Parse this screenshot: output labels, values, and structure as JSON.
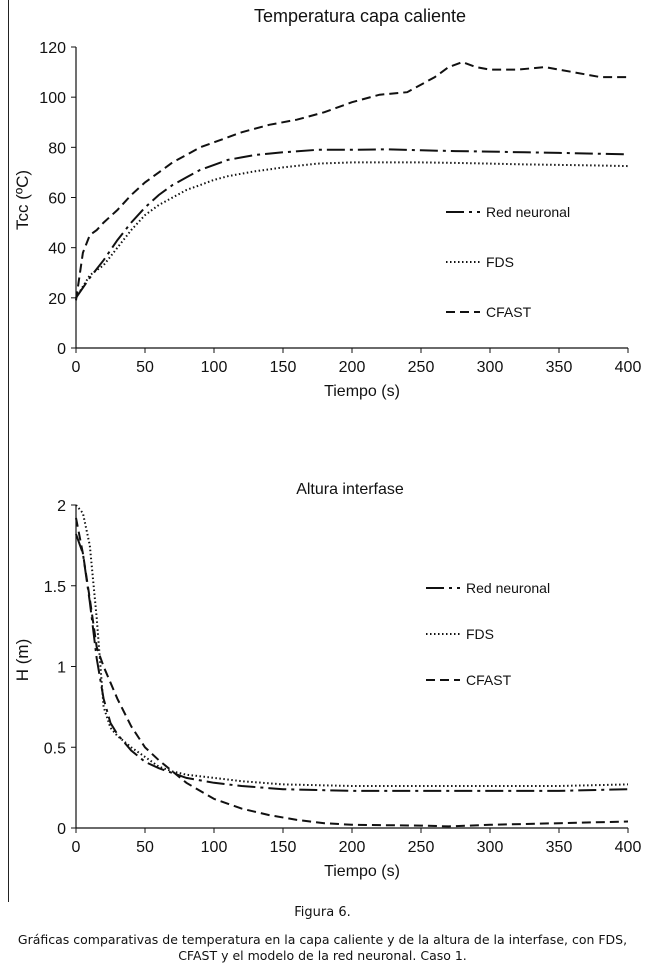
{
  "figure": {
    "label": "Figura 6.",
    "caption": "Gráficas comparativas de temperatura en la capa caliente y de la altura de la interfase, con FDS, CFAST y el modelo de la red neuronal. Caso 1."
  },
  "chart_data": [
    {
      "type": "line",
      "title": "Temperatura capa caliente",
      "xlabel": "Tiempo (s)",
      "ylabel": "Tcc (ºC)",
      "xlim": [
        0,
        400
      ],
      "ylim": [
        0,
        120
      ],
      "xticks": [
        "0",
        "50",
        "100",
        "150",
        "200",
        "250",
        "300",
        "350",
        "400"
      ],
      "yticks": [
        "0",
        "20",
        "40",
        "60",
        "80",
        "100",
        "120"
      ],
      "grid": false,
      "legend_position": "right",
      "series": [
        {
          "name": "Red neuronal",
          "style": "dashdot",
          "x": [
            0,
            10,
            20,
            30,
            40,
            50,
            60,
            70,
            80,
            90,
            100,
            110,
            120,
            130,
            140,
            150,
            175,
            200,
            225,
            250,
            275,
            300,
            325,
            350,
            375,
            400
          ],
          "y": [
            20,
            28,
            35,
            43,
            50,
            56,
            61,
            65,
            68,
            71,
            73,
            75,
            76,
            77,
            77.5,
            78,
            79,
            79,
            79.2,
            78.8,
            78.5,
            78.3,
            78,
            77.8,
            77.5,
            77.2
          ]
        },
        {
          "name": "FDS",
          "style": "dotted",
          "x": [
            0,
            10,
            20,
            30,
            40,
            50,
            60,
            70,
            80,
            90,
            100,
            110,
            120,
            130,
            140,
            150,
            175,
            200,
            225,
            250,
            275,
            300,
            325,
            350,
            375,
            400
          ],
          "y": [
            20,
            29,
            33,
            40,
            47,
            53,
            57,
            60,
            63,
            65,
            67,
            68.5,
            69.5,
            70.5,
            71.2,
            72,
            73.5,
            74,
            74,
            74,
            73.8,
            73.5,
            73.2,
            73,
            72.8,
            72.5
          ]
        },
        {
          "name": "CFAST",
          "style": "dashed",
          "x": [
            0,
            5,
            10,
            15,
            20,
            30,
            40,
            50,
            60,
            70,
            80,
            90,
            100,
            120,
            140,
            160,
            180,
            200,
            220,
            240,
            260,
            270,
            280,
            290,
            300,
            320,
            340,
            360,
            380,
            400
          ],
          "y": [
            19,
            38,
            45,
            47,
            50,
            55,
            61,
            66,
            70,
            74,
            77,
            80,
            82,
            86,
            89,
            91,
            94,
            98,
            101,
            102,
            108,
            112,
            114,
            112,
            111,
            111,
            112,
            110,
            108,
            108
          ]
        }
      ]
    },
    {
      "type": "line",
      "title": "Altura interfase",
      "xlabel": "Tiempo (s)",
      "ylabel": "H (m)",
      "xlim": [
        0,
        400
      ],
      "ylim": [
        0,
        2
      ],
      "xticks": [
        "0",
        "50",
        "100",
        "150",
        "200",
        "250",
        "300",
        "350",
        "400"
      ],
      "yticks": [
        "0",
        "0.5",
        "1",
        "1.5",
        "2"
      ],
      "grid": false,
      "legend_position": "right",
      "series": [
        {
          "name": "Red neuronal",
          "style": "dashdot",
          "x": [
            0,
            5,
            10,
            15,
            20,
            25,
            30,
            40,
            50,
            60,
            70,
            80,
            100,
            120,
            150,
            200,
            250,
            300,
            350,
            400
          ],
          "y": [
            1.82,
            1.7,
            1.4,
            1.05,
            0.8,
            0.65,
            0.58,
            0.48,
            0.41,
            0.37,
            0.34,
            0.31,
            0.28,
            0.26,
            0.24,
            0.23,
            0.23,
            0.23,
            0.23,
            0.24
          ]
        },
        {
          "name": "FDS",
          "style": "dotted",
          "x": [
            0,
            5,
            10,
            15,
            20,
            25,
            30,
            40,
            50,
            60,
            70,
            80,
            100,
            120,
            150,
            200,
            250,
            300,
            350,
            400
          ],
          "y": [
            2.0,
            1.95,
            1.75,
            1.3,
            0.75,
            0.62,
            0.57,
            0.5,
            0.44,
            0.38,
            0.35,
            0.33,
            0.31,
            0.29,
            0.27,
            0.26,
            0.26,
            0.26,
            0.26,
            0.27
          ]
        },
        {
          "name": "CFAST",
          "style": "dashed",
          "x": [
            0,
            5,
            10,
            15,
            20,
            30,
            40,
            50,
            60,
            70,
            80,
            90,
            100,
            120,
            140,
            160,
            180,
            200,
            250,
            270,
            300,
            350,
            400
          ],
          "y": [
            1.92,
            1.7,
            1.42,
            1.12,
            1.0,
            0.8,
            0.63,
            0.5,
            0.42,
            0.35,
            0.28,
            0.23,
            0.18,
            0.12,
            0.08,
            0.05,
            0.03,
            0.02,
            0.015,
            0.01,
            0.02,
            0.03,
            0.04
          ]
        }
      ]
    }
  ]
}
